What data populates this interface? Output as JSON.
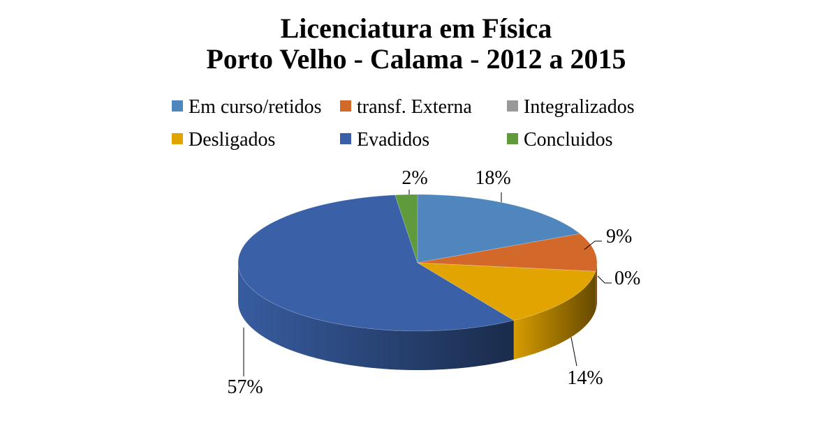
{
  "chart_data": {
    "type": "pie",
    "title_lines": [
      "Licenciatura em Física",
      "Porto Velho - Calama - 2012 a 2015"
    ],
    "legend_placement": "top",
    "slices": [
      {
        "name": "Em curso/retidos",
        "value": 18,
        "label": "18%",
        "color": "#4f86bd"
      },
      {
        "name": "transf. Externa",
        "value": 9,
        "label": "9%",
        "color": "#d2692a"
      },
      {
        "name": "Integralizados",
        "value": 0,
        "label": "0%",
        "color": "#999999"
      },
      {
        "name": "Desligados",
        "value": 14,
        "label": "14%",
        "color": "#e2a400"
      },
      {
        "name": "Evadidos",
        "value": 57,
        "label": "57%",
        "color": "#3a61a8"
      },
      {
        "name": "Concluidos",
        "value": 2,
        "label": "2%",
        "color": "#5f9a3c"
      }
    ]
  }
}
